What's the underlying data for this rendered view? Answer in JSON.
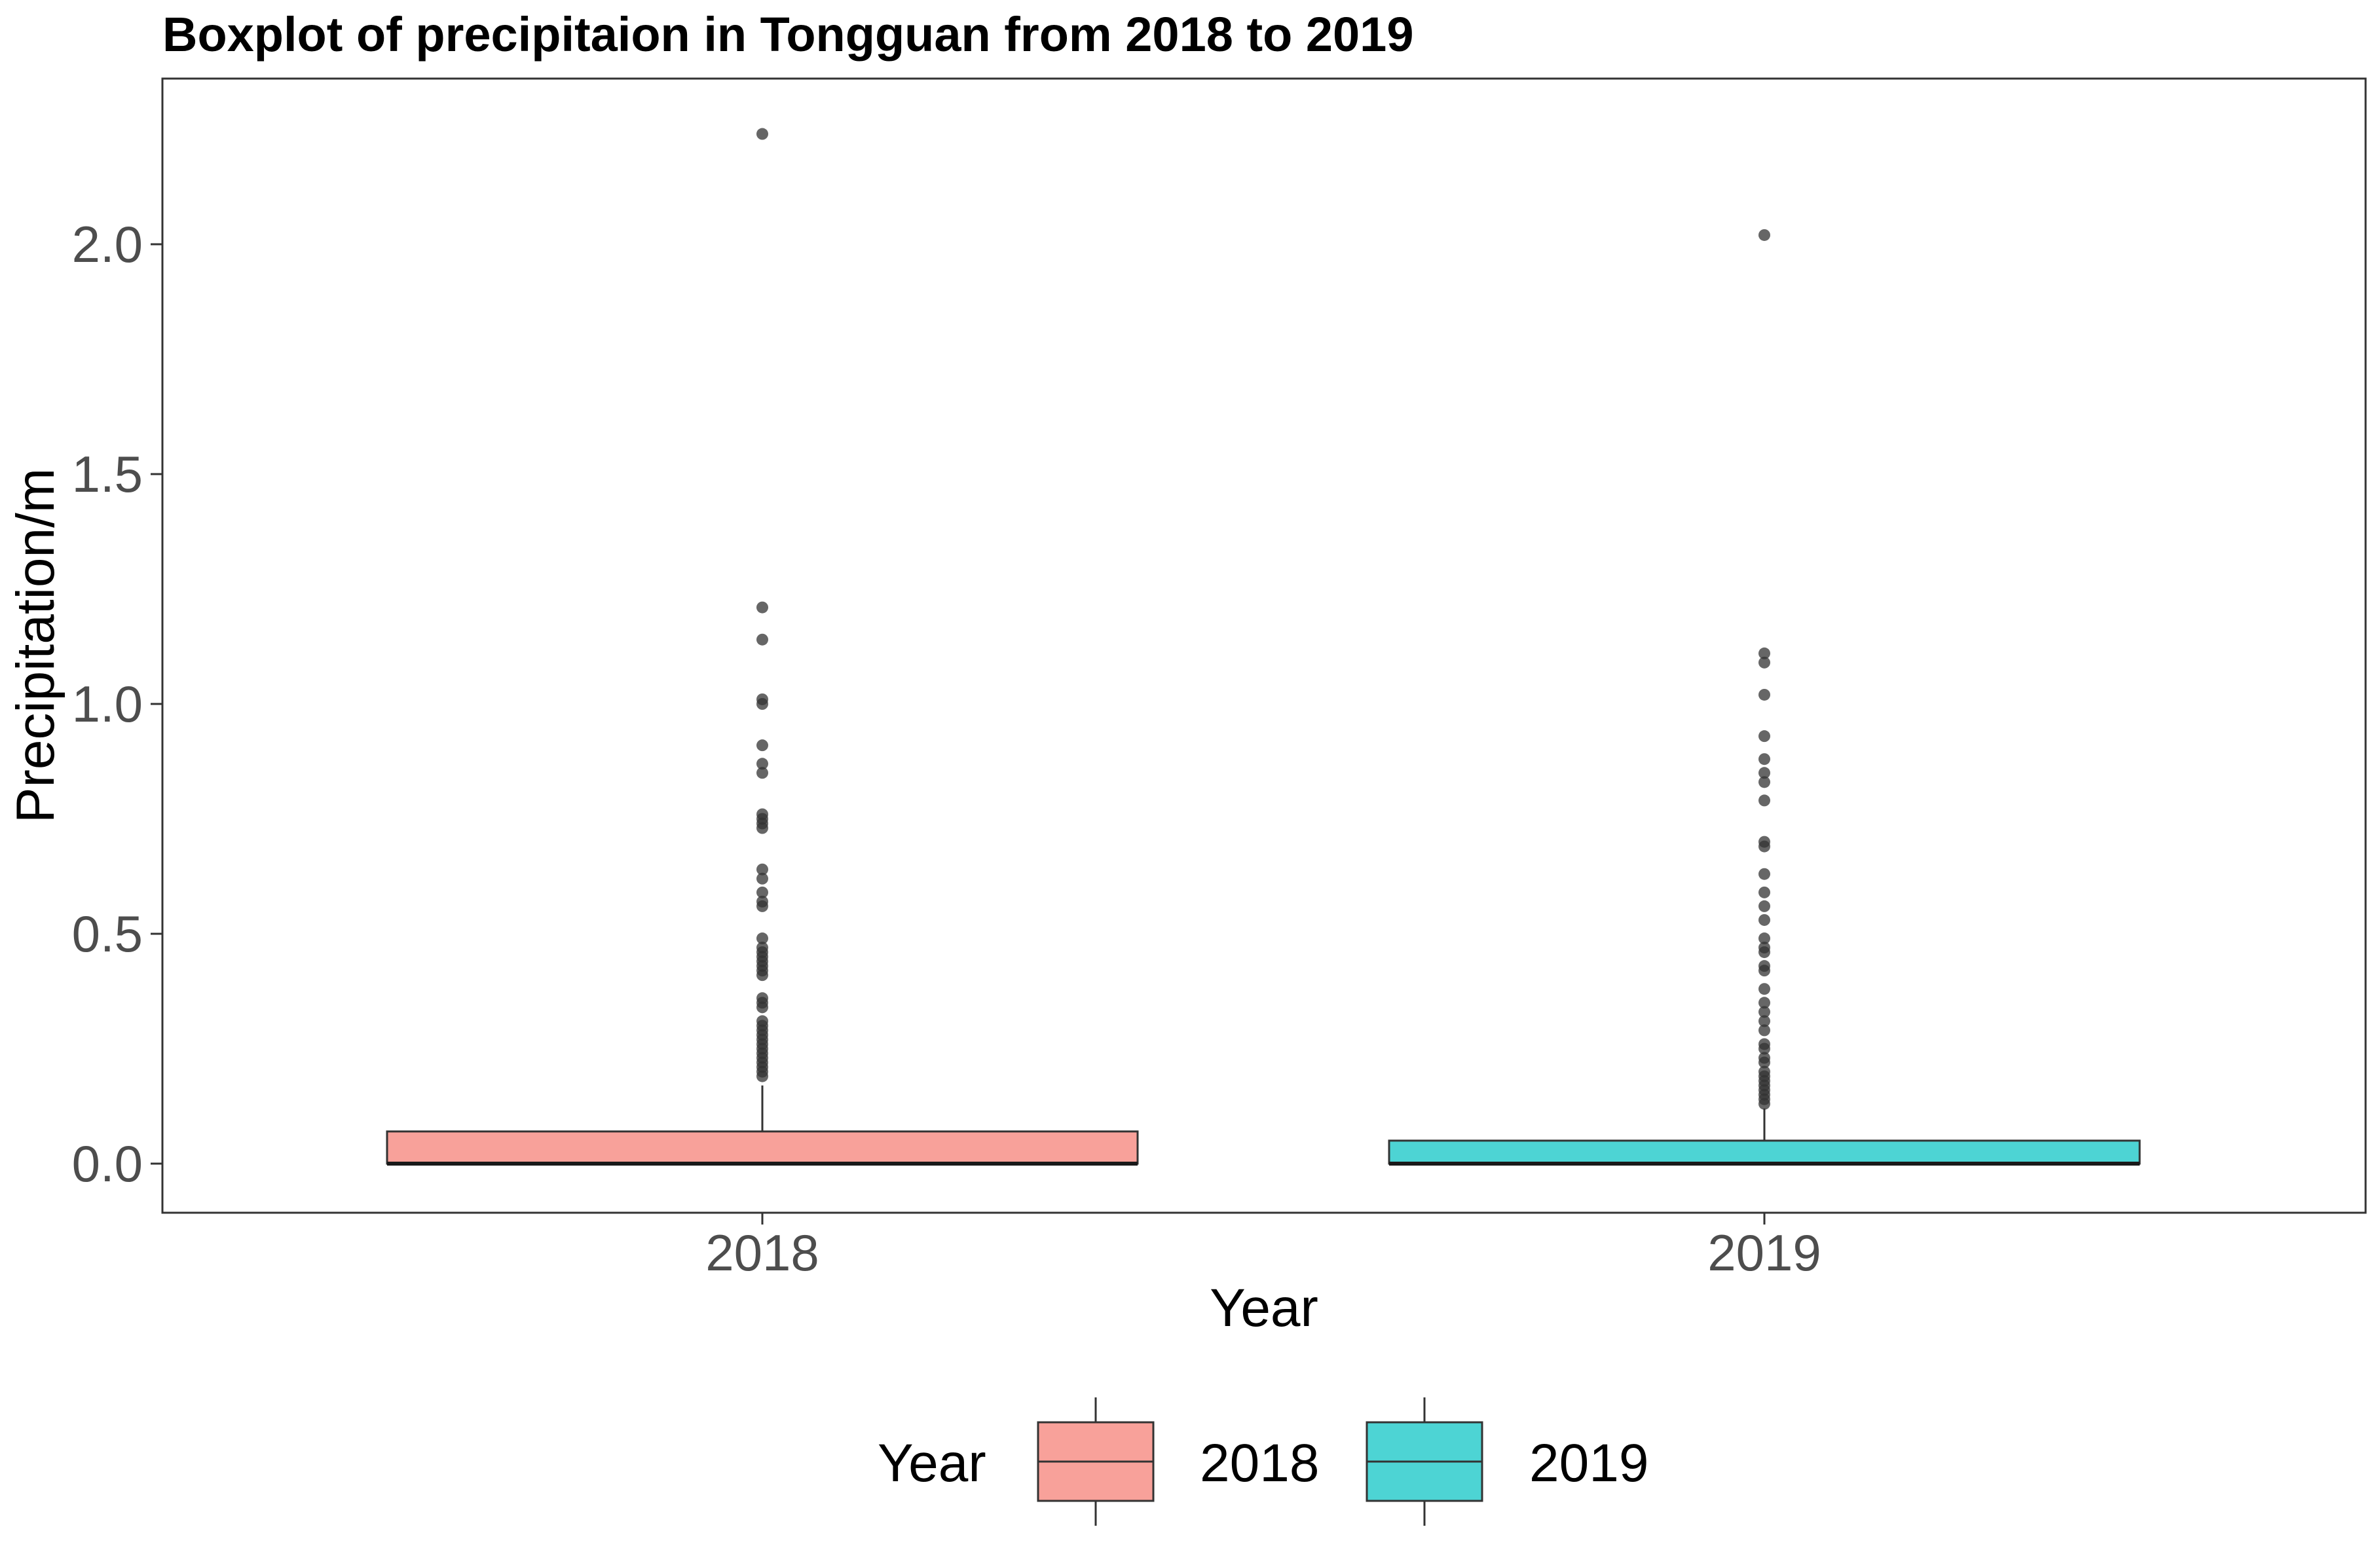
{
  "chart_data": {
    "type": "boxplot",
    "title": "Boxplot of precipitaion in Tongguan from 2018 to 2019",
    "xlabel": "Year",
    "ylabel": "Precipitation/m",
    "ylim": [
      -0.105,
      2.36
    ],
    "yticks": [
      0.0,
      0.5,
      1.0,
      1.5,
      2.0
    ],
    "ytick_labels": [
      "0.0",
      "0.5",
      "1.0",
      "1.5",
      "2.0"
    ],
    "grid": false,
    "legend": {
      "title": "Year",
      "position": "bottom",
      "entries": [
        "2018",
        "2019"
      ]
    },
    "categories": [
      "2018",
      "2019"
    ],
    "series": [
      {
        "name": "2018",
        "color": "#F8A19A",
        "min": 0.0,
        "q1": 0.0,
        "median": 0.0,
        "q3": 0.07,
        "whisker_high": 0.17,
        "outliers": [
          2.24,
          1.21,
          1.14,
          1.01,
          1.0,
          0.91,
          0.87,
          0.85,
          0.76,
          0.75,
          0.74,
          0.73,
          0.64,
          0.62,
          0.59,
          0.57,
          0.56,
          0.49,
          0.47,
          0.46,
          0.45,
          0.44,
          0.43,
          0.42,
          0.41,
          0.36,
          0.35,
          0.34,
          0.31,
          0.3,
          0.29,
          0.28,
          0.27,
          0.26,
          0.25,
          0.24,
          0.23,
          0.22,
          0.21,
          0.2,
          0.19
        ]
      },
      {
        "name": "2019",
        "color": "#4DD4D4",
        "min": 0.0,
        "q1": 0.0,
        "median": 0.0,
        "q3": 0.05,
        "whisker_high": 0.12,
        "outliers": [
          2.02,
          1.11,
          1.09,
          1.02,
          0.93,
          0.88,
          0.85,
          0.83,
          0.79,
          0.7,
          0.69,
          0.63,
          0.59,
          0.56,
          0.53,
          0.49,
          0.47,
          0.46,
          0.43,
          0.42,
          0.38,
          0.35,
          0.33,
          0.31,
          0.29,
          0.26,
          0.25,
          0.23,
          0.22,
          0.2,
          0.19,
          0.18,
          0.17,
          0.16,
          0.15,
          0.14,
          0.13
        ]
      }
    ]
  }
}
